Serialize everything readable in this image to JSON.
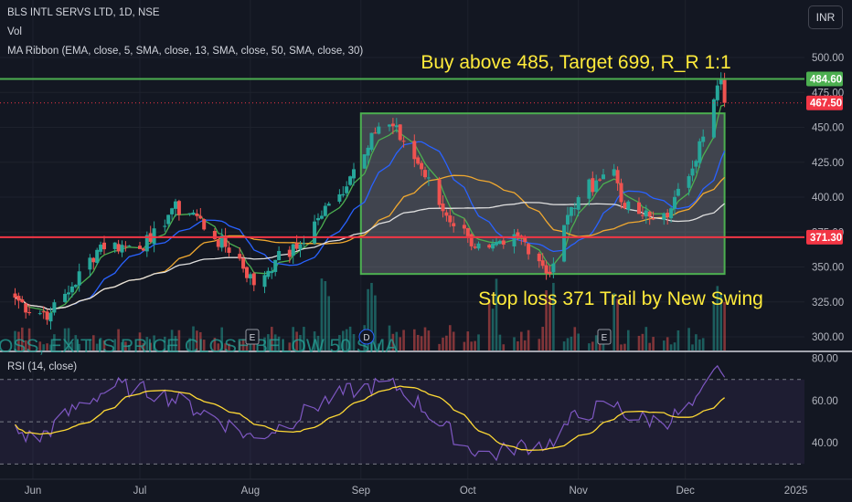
{
  "header": {
    "symbol_line": "BLS INTL SERVS LTD, 1D, NSE",
    "vol_label": "Vol",
    "ma_label": "MA Ribbon (EMA, close, 5, SMA, close, 13, SMA, close, 50, SMA, close, 30)",
    "rsi_label": "RSI (14, close)",
    "currency_button": "INR"
  },
  "annotations": {
    "top_text": "Buy above 485, Target  699, R_R 1:1",
    "bottom_text": "Stop loss 371 Trail by New Swing",
    "scroll_text": "OSS, EXIT IS PRICE CLOSE BELOW 50 SMA",
    "earnings_marker": "E",
    "dividend_marker": "D"
  },
  "colors": {
    "background": "#131722",
    "up": "#26a69a",
    "down": "#ef5350",
    "green_line": "#4caf50",
    "red_line": "#f23645",
    "annotation": "#ffeb3b",
    "rsi_line": "#7e57c2",
    "rsi_ma": "#fdd835",
    "ema5": "#4caf50",
    "sma13": "#2962ff",
    "sma30": "#f0a830",
    "sma50": "#e0e0e0"
  },
  "chart_data": {
    "type": "candlestick",
    "title": "BLS INTL SERVS LTD, 1D, NSE",
    "x_ticks": [
      "Jun",
      "Jul",
      "Aug",
      "Sep",
      "Oct",
      "Nov",
      "Dec",
      "2025"
    ],
    "y_ticks": [
      300,
      325,
      350,
      375,
      400,
      425,
      450,
      475,
      500
    ],
    "ylim": [
      295,
      512
    ],
    "price_labels": [
      {
        "label": "484.60",
        "value": 484.6,
        "color": "#4caf50"
      },
      {
        "label": "467.50",
        "value": 467.5,
        "color": "#f23645"
      },
      {
        "label": "371.30",
        "value": 371.3,
        "color": "#f23645"
      }
    ],
    "horizontal_lines": [
      {
        "name": "target",
        "value": 484.6
      },
      {
        "name": "stop",
        "value": 371.3
      }
    ],
    "consolidation_box": {
      "start": "Sep 01",
      "end": "Dec 12",
      "low": 345,
      "high": 460
    },
    "close_anchors": [
      [
        "May 27",
        328
      ],
      [
        "Jun 01",
        318
      ],
      [
        "Jun 06",
        317
      ],
      [
        "Jun 12",
        336
      ],
      [
        "Jun 20",
        366
      ],
      [
        "Jun 27",
        365
      ],
      [
        "Jul 04",
        368
      ],
      [
        "Jul 10",
        392
      ],
      [
        "Jul 16",
        389
      ],
      [
        "Jul 22",
        370
      ],
      [
        "Jul 28",
        360
      ],
      [
        "Aug 02",
        337
      ],
      [
        "Aug 08",
        355
      ],
      [
        "Aug 14",
        363
      ],
      [
        "Aug 20",
        385
      ],
      [
        "Aug 26",
        402
      ],
      [
        "Aug 30",
        420
      ],
      [
        "Sep 04",
        446
      ],
      [
        "Sep 09",
        452
      ],
      [
        "Sep 13",
        440
      ],
      [
        "Sep 18",
        420
      ],
      [
        "Sep 24",
        390
      ],
      [
        "Oct 01",
        372
      ],
      [
        "Oct 06",
        358
      ],
      [
        "Oct 11",
        366
      ],
      [
        "Oct 15",
        372
      ],
      [
        "Oct 20",
        360
      ],
      [
        "Oct 24",
        345
      ],
      [
        "Oct 28",
        380
      ],
      [
        "Nov 01",
        400
      ],
      [
        "Nov 06",
        412
      ],
      [
        "Nov 11",
        420
      ],
      [
        "Nov 14",
        392
      ],
      [
        "Nov 18",
        388
      ],
      [
        "Nov 22",
        384
      ],
      [
        "Nov 27",
        392
      ],
      [
        "Dec 02",
        415
      ],
      [
        "Dec 05",
        440
      ],
      [
        "Dec 09",
        470
      ],
      [
        "Dec 11",
        485
      ],
      [
        "Dec 12",
        467.5
      ]
    ],
    "moving_averages": [
      "EMA 5",
      "SMA 13",
      "SMA 30",
      "SMA 50"
    ],
    "rsi": {
      "y_ticks": [
        40,
        60,
        80
      ],
      "ylim": [
        28,
        82
      ],
      "levels": [
        30,
        50,
        70
      ],
      "anchors": [
        [
          "May 27",
          46
        ],
        [
          "Jun 02",
          41
        ],
        [
          "Jun 14",
          58
        ],
        [
          "Jun 24",
          67
        ],
        [
          "Jul 05",
          64
        ],
        [
          "Jul 12",
          60
        ],
        [
          "Jul 22",
          52
        ],
        [
          "Aug 02",
          42
        ],
        [
          "Aug 12",
          50
        ],
        [
          "Aug 22",
          60
        ],
        [
          "Aug 30",
          65
        ],
        [
          "Sep 08",
          68
        ],
        [
          "Sep 13",
          65
        ],
        [
          "Sep 24",
          48
        ],
        [
          "Oct 01",
          38
        ],
        [
          "Oct 08",
          34
        ],
        [
          "Oct 14",
          38
        ],
        [
          "Oct 24",
          40
        ],
        [
          "Oct 31",
          52
        ],
        [
          "Nov 06",
          56
        ],
        [
          "Nov 11",
          58
        ],
        [
          "Nov 16",
          52
        ],
        [
          "Nov 25",
          50
        ],
        [
          "Dec 04",
          58
        ],
        [
          "Dec 09",
          72
        ],
        [
          "Dec 11",
          76
        ],
        [
          "Dec 12",
          71
        ]
      ]
    }
  }
}
